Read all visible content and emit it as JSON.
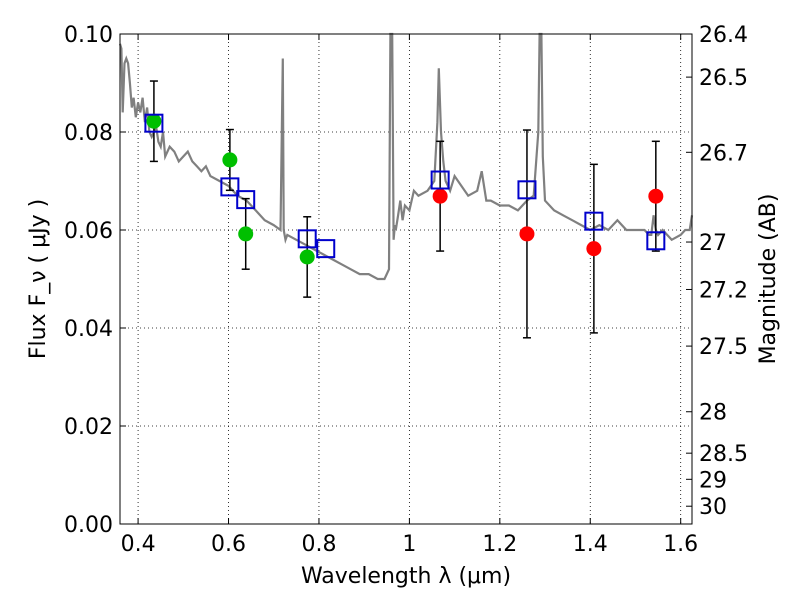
{
  "chart_data": {
    "type": "scatter",
    "xlabel": "Wavelength λ (μm)",
    "ylabel": "Flux F_ν ( μJy )",
    "y2label": "Magnitude (AB)",
    "xlim": [
      0.36,
      1.625
    ],
    "ylim": [
      0.0,
      0.1
    ],
    "x_ticks": [
      0.4,
      0.6,
      0.8,
      1.0,
      1.2,
      1.4,
      1.6
    ],
    "x_tick_labels": [
      "0.4",
      "0.6",
      "0.8",
      "1",
      "1.2",
      "1.4",
      "1.6"
    ],
    "y_ticks": [
      0.0,
      0.02,
      0.04,
      0.06,
      0.08,
      0.1
    ],
    "y_tick_labels": [
      "0.00",
      "0.02",
      "0.04",
      "0.06",
      "0.08",
      "0.10"
    ],
    "mag_ticks": [
      26.4,
      26.5,
      26.7,
      27,
      27.2,
      27.5,
      28,
      28.5,
      29,
      30
    ],
    "mag_tick_labels": [
      "26.4",
      "26.5",
      "26.7",
      "27",
      "27.2",
      "27.5",
      "28",
      "28.5",
      "29",
      "30"
    ],
    "grid": true,
    "colors": {
      "model": "#808080",
      "green": "#00bf00",
      "red": "#ff0000",
      "box": "#0000cc",
      "error": "#000000"
    },
    "model_spectrum": {
      "x": [
        0.36,
        0.363,
        0.366,
        0.37,
        0.374,
        0.378,
        0.382,
        0.386,
        0.39,
        0.395,
        0.4,
        0.405,
        0.41,
        0.415,
        0.42,
        0.425,
        0.43,
        0.44,
        0.445,
        0.45,
        0.455,
        0.46,
        0.47,
        0.48,
        0.49,
        0.5,
        0.51,
        0.52,
        0.53,
        0.54,
        0.55,
        0.56,
        0.58,
        0.6,
        0.62,
        0.64,
        0.66,
        0.68,
        0.7,
        0.715,
        0.72,
        0.722,
        0.726,
        0.73,
        0.75,
        0.77,
        0.79,
        0.81,
        0.83,
        0.85,
        0.87,
        0.89,
        0.91,
        0.93,
        0.945,
        0.955,
        0.958,
        0.96,
        0.962,
        0.965,
        0.968,
        0.97,
        0.975,
        0.98,
        0.985,
        0.99,
        1.0,
        1.01,
        1.02,
        1.04,
        1.055,
        1.062,
        1.065,
        1.07,
        1.075,
        1.08,
        1.09,
        1.1,
        1.13,
        1.15,
        1.16,
        1.17,
        1.18,
        1.2,
        1.22,
        1.24,
        1.26,
        1.275,
        1.285,
        1.288,
        1.29,
        1.292,
        1.295,
        1.3,
        1.32,
        1.34,
        1.36,
        1.38,
        1.4,
        1.42,
        1.44,
        1.46,
        1.48,
        1.5,
        1.52,
        1.53,
        1.535,
        1.54,
        1.545,
        1.55,
        1.56,
        1.58,
        1.6,
        1.61,
        1.62,
        1.625
      ],
      "y": [
        0.098,
        0.097,
        0.084,
        0.094,
        0.095,
        0.094,
        0.09,
        0.085,
        0.087,
        0.083,
        0.086,
        0.084,
        0.087,
        0.082,
        0.085,
        0.08,
        0.079,
        0.081,
        0.078,
        0.077,
        0.08,
        0.075,
        0.077,
        0.076,
        0.074,
        0.075,
        0.076,
        0.074,
        0.073,
        0.072,
        0.073,
        0.071,
        0.07,
        0.069,
        0.067,
        0.066,
        0.064,
        0.062,
        0.061,
        0.06,
        0.095,
        0.06,
        0.058,
        0.059,
        0.058,
        0.057,
        0.056,
        0.055,
        0.054,
        0.053,
        0.052,
        0.051,
        0.051,
        0.05,
        0.05,
        0.052,
        0.1,
        0.1,
        0.1,
        0.058,
        0.061,
        0.06,
        0.063,
        0.066,
        0.062,
        0.065,
        0.064,
        0.068,
        0.067,
        0.068,
        0.07,
        0.082,
        0.093,
        0.08,
        0.074,
        0.07,
        0.068,
        0.071,
        0.067,
        0.068,
        0.072,
        0.066,
        0.066,
        0.065,
        0.065,
        0.064,
        0.066,
        0.067,
        0.08,
        0.1,
        0.1,
        0.1,
        0.075,
        0.066,
        0.064,
        0.063,
        0.062,
        0.061,
        0.06,
        0.061,
        0.06,
        0.062,
        0.06,
        0.06,
        0.06,
        0.059,
        0.059,
        0.063,
        0.06,
        0.059,
        0.06,
        0.058,
        0.059,
        0.06,
        0.06,
        0.063
      ]
    },
    "green_points": {
      "x": [
        0.435,
        0.603,
        0.638,
        0.774
      ],
      "y": [
        0.0822,
        0.0743,
        0.0592,
        0.0545
      ],
      "yerr_low": [
        0.0082,
        0.0062,
        0.0072,
        0.0082
      ],
      "yerr_high": [
        0.0082,
        0.0062,
        0.0072,
        0.0082
      ]
    },
    "red_points": {
      "x": [
        1.068,
        1.26,
        1.408,
        1.545
      ],
      "y": [
        0.0669,
        0.0592,
        0.0562,
        0.0669
      ],
      "yerr_low": [
        0.0112,
        0.0212,
        0.0172,
        0.0112
      ],
      "yerr_high": [
        0.0112,
        0.0212,
        0.0172,
        0.0112
      ]
    },
    "model_boxes": {
      "x": [
        0.435,
        0.603,
        0.638,
        0.774,
        0.815,
        1.068,
        1.26,
        1.408,
        1.545
      ],
      "y": [
        0.0818,
        0.0688,
        0.0662,
        0.0582,
        0.0562,
        0.0702,
        0.0682,
        0.0618,
        0.0578
      ]
    }
  }
}
